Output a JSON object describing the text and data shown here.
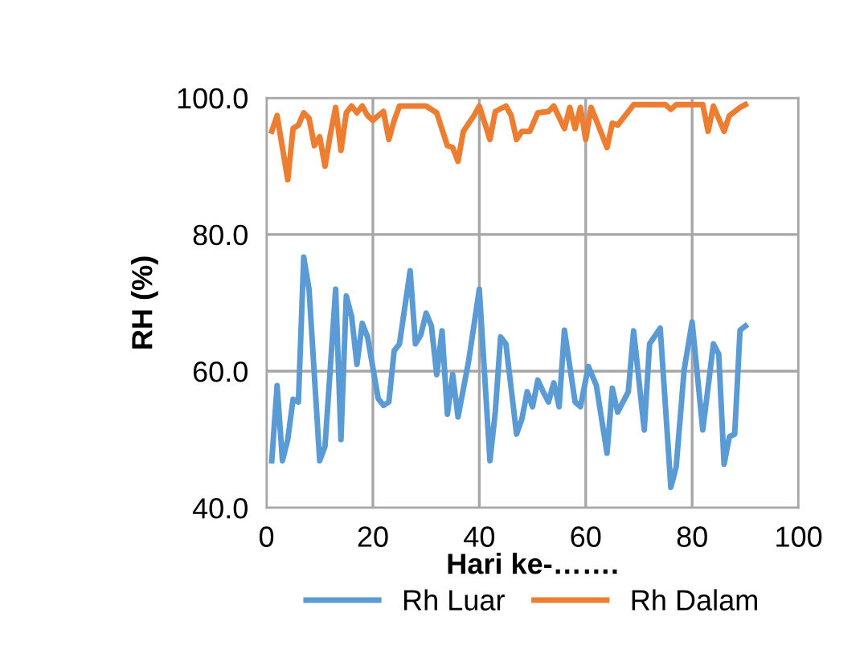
{
  "chart_data": {
    "type": "line",
    "xlabel": "Hari ke-…….",
    "ylabel": "RH (%)",
    "xlim": [
      0,
      100
    ],
    "xticks": [
      0,
      20,
      40,
      60,
      80,
      100
    ],
    "ylim": [
      40,
      100
    ],
    "yticks": [
      {
        "value": 40,
        "label": "40.0"
      },
      {
        "value": 60,
        "label": "60.0"
      },
      {
        "value": 80,
        "label": "80.0"
      },
      {
        "value": 100,
        "label": "100.0"
      }
    ],
    "grid": true,
    "legend": "bottom",
    "marker": "none",
    "line_style": "solid",
    "series": [
      {
        "name": "Rh Luar",
        "color": "#5b9bd5",
        "x": [
          1,
          2,
          3,
          4,
          5,
          6,
          7,
          8,
          10,
          11,
          13,
          14,
          15,
          16,
          17,
          18,
          19,
          21,
          22,
          23,
          24,
          25,
          27,
          28,
          29,
          30,
          31,
          32,
          33,
          34,
          35,
          36,
          38,
          40,
          42,
          43,
          44,
          45,
          47,
          48,
          49,
          50,
          51,
          52,
          53,
          54,
          55,
          56,
          58,
          59,
          60.5,
          62,
          64,
          65,
          66,
          68,
          69,
          71,
          72,
          74,
          76,
          77,
          78.5,
          80,
          82,
          84,
          85,
          86,
          87,
          88,
          89,
          90
        ],
        "values": [
          46.9,
          57.9,
          46.9,
          50,
          55.9,
          55.5,
          76.7,
          72,
          46.9,
          49,
          72,
          50,
          71,
          68,
          61,
          67,
          65,
          56,
          55,
          55.5,
          63,
          64,
          74.7,
          64,
          65.3,
          68.5,
          66.6,
          59.5,
          65.9,
          53.7,
          59.5,
          53.3,
          61.5,
          72,
          46.9,
          54,
          65,
          64,
          50.8,
          53,
          57,
          54.8,
          58.7,
          57,
          55.5,
          58.3,
          54.8,
          66,
          55.5,
          54.8,
          60.7,
          57.9,
          48,
          57.5,
          54,
          57,
          65.9,
          51.4,
          64,
          66.3,
          43,
          46,
          60.2,
          67.2,
          51.4,
          64,
          62.5,
          46.4,
          50.4,
          50.8,
          66,
          66.6
        ]
      },
      {
        "name": "Rh Dalam",
        "color": "#ed7d31",
        "x": [
          1,
          2,
          3,
          4,
          5,
          6,
          7,
          8,
          9,
          10,
          11,
          12,
          13,
          14,
          15,
          16,
          17,
          18,
          19,
          20,
          21,
          22,
          23,
          24,
          25,
          30,
          32,
          34,
          35,
          36,
          37,
          39,
          40,
          42,
          43,
          45,
          46,
          47,
          48,
          49.5,
          51,
          53,
          54,
          56,
          57,
          58,
          59,
          60,
          61,
          62,
          64,
          65,
          66,
          69,
          75,
          76,
          77,
          82,
          83,
          84,
          86,
          87,
          89,
          90
        ],
        "values": [
          95.1,
          97.4,
          92.7,
          88,
          95.5,
          96,
          97.8,
          97,
          93,
          94.3,
          90,
          94.6,
          98.6,
          92.3,
          97.8,
          98.8,
          97.8,
          98.8,
          97.4,
          96.7,
          97.4,
          98,
          93.9,
          96.7,
          98.8,
          98.8,
          97.8,
          93,
          92.7,
          90.7,
          95.1,
          97.4,
          98.8,
          93.9,
          98,
          98.8,
          97.4,
          93.9,
          95.1,
          95.1,
          97.8,
          98,
          98.8,
          95.5,
          98.6,
          95.5,
          98.6,
          93.9,
          98.6,
          96.7,
          92.7,
          96.3,
          96,
          99,
          99,
          98.3,
          99,
          99,
          95.1,
          98.8,
          95.1,
          97.4,
          98.6,
          99
        ]
      }
    ]
  }
}
